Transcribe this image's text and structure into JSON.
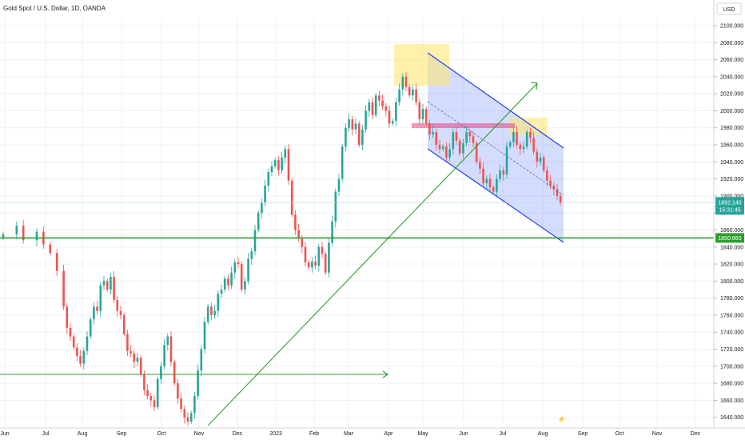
{
  "chart_data": {
    "type": "candlestick",
    "title": "Gold Spot / U.S. Dollar, 1D, OANDA",
    "currency": "USD",
    "x_ticks": [
      "Jun",
      "Jul",
      "Aug",
      "Sep",
      "Oct",
      "Nov",
      "Dec",
      "2023",
      "Feb",
      "Mar",
      "Apr",
      "May",
      "Jun",
      "Jul",
      "Aug",
      "Sep",
      "Oct",
      "Nov",
      "Dec"
    ],
    "y_ticks": [
      2100,
      2080,
      2060,
      2040,
      2020,
      2000,
      1980,
      1960,
      1940,
      1920,
      1900,
      1880,
      1860,
      1840,
      1820,
      1800,
      1780,
      1760,
      1740,
      1720,
      1700,
      1680,
      1660,
      1640
    ],
    "ylim": [
      1635,
      2112
    ],
    "grid": true,
    "last_price": "1892.140",
    "countdown": "15:31:45",
    "level_price": "1850.660",
    "colors": {
      "up": "#26a69a",
      "down": "#ef5350",
      "line": "#2e9e2e",
      "channel": "#1e40ff",
      "box": "#ffe566",
      "pink": "#e91e63"
    },
    "price_path": [
      [
        0,
        1855
      ],
      [
        4,
        1865
      ],
      [
        6,
        1848
      ],
      [
        10,
        1858
      ],
      [
        12,
        1843
      ],
      [
        14,
        1833
      ],
      [
        16,
        1812
      ],
      [
        18,
        1770
      ],
      [
        19,
        1745
      ],
      [
        20,
        1735
      ],
      [
        21,
        1722
      ],
      [
        22,
        1712
      ],
      [
        23,
        1703
      ],
      [
        24,
        1718
      ],
      [
        25,
        1735
      ],
      [
        26,
        1755
      ],
      [
        27,
        1770
      ],
      [
        28,
        1765
      ],
      [
        29,
        1795
      ],
      [
        30,
        1800
      ],
      [
        31,
        1790
      ],
      [
        32,
        1805
      ],
      [
        33,
        1778
      ],
      [
        34,
        1765
      ],
      [
        35,
        1760
      ],
      [
        36,
        1738
      ],
      [
        37,
        1718
      ],
      [
        38,
        1715
      ],
      [
        39,
        1705
      ],
      [
        40,
        1710
      ],
      [
        41,
        1690
      ],
      [
        42,
        1672
      ],
      [
        43,
        1665
      ],
      [
        44,
        1660
      ],
      [
        45,
        1652
      ],
      [
        46,
        1685
      ],
      [
        47,
        1700
      ],
      [
        48,
        1725
      ],
      [
        49,
        1735
      ],
      [
        50,
        1705
      ],
      [
        51,
        1680
      ],
      [
        52,
        1662
      ],
      [
        53,
        1650
      ],
      [
        54,
        1640
      ],
      [
        55,
        1635
      ],
      [
        56,
        1645
      ],
      [
        57,
        1665
      ],
      [
        58,
        1695
      ],
      [
        59,
        1720
      ],
      [
        60,
        1752
      ],
      [
        61,
        1770
      ],
      [
        62,
        1760
      ],
      [
        63,
        1765
      ],
      [
        64,
        1785
      ],
      [
        65,
        1790
      ],
      [
        66,
        1803
      ],
      [
        67,
        1795
      ],
      [
        68,
        1810
      ],
      [
        69,
        1822
      ],
      [
        70,
        1820
      ],
      [
        71,
        1790
      ],
      [
        72,
        1800
      ],
      [
        73,
        1826
      ],
      [
        74,
        1835
      ],
      [
        75,
        1860
      ],
      [
        76,
        1880
      ],
      [
        77,
        1892
      ],
      [
        78,
        1912
      ],
      [
        79,
        1928
      ],
      [
        80,
        1935
      ],
      [
        81,
        1942
      ],
      [
        82,
        1930
      ],
      [
        83,
        1945
      ],
      [
        84,
        1955
      ],
      [
        85,
        1918
      ],
      [
        86,
        1878
      ],
      [
        87,
        1860
      ],
      [
        88,
        1850
      ],
      [
        89,
        1840
      ],
      [
        90,
        1822
      ],
      [
        91,
        1816
      ],
      [
        92,
        1823
      ],
      [
        93,
        1818
      ],
      [
        94,
        1840
      ],
      [
        95,
        1832
      ],
      [
        96,
        1810
      ],
      [
        97,
        1845
      ],
      [
        98,
        1870
      ],
      [
        99,
        1905
      ],
      [
        100,
        1920
      ],
      [
        101,
        1958
      ],
      [
        102,
        1980
      ],
      [
        103,
        1990
      ],
      [
        104,
        1978
      ],
      [
        105,
        1985
      ],
      [
        106,
        1960
      ],
      [
        107,
        1978
      ],
      [
        108,
        2000
      ],
      [
        109,
        2010
      ],
      [
        110,
        1995
      ],
      [
        111,
        2018
      ],
      [
        112,
        2012
      ],
      [
        113,
        2005
      ],
      [
        114,
        2000
      ],
      [
        115,
        1985
      ],
      [
        116,
        1988
      ],
      [
        117,
        2010
      ],
      [
        118,
        2025
      ],
      [
        119,
        2040
      ],
      [
        120,
        2028
      ],
      [
        121,
        2018
      ],
      [
        122,
        2025
      ],
      [
        123,
        2010
      ],
      [
        124,
        1990
      ],
      [
        125,
        2002
      ],
      [
        126,
        1985
      ],
      [
        127,
        1972
      ],
      [
        128,
        1975
      ],
      [
        129,
        1960
      ],
      [
        130,
        1955
      ],
      [
        131,
        1958
      ],
      [
        132,
        1945
      ],
      [
        133,
        1955
      ],
      [
        134,
        1975
      ],
      [
        135,
        1965
      ],
      [
        136,
        1950
      ],
      [
        137,
        1962
      ],
      [
        138,
        1975
      ],
      [
        139,
        1970
      ],
      [
        140,
        1962
      ],
      [
        141,
        1940
      ],
      [
        142,
        1932
      ],
      [
        143,
        1915
      ],
      [
        144,
        1920
      ],
      [
        145,
        1910
      ],
      [
        146,
        1905
      ],
      [
        147,
        1920
      ],
      [
        148,
        1930
      ],
      [
        149,
        1925
      ],
      [
        150,
        1958
      ],
      [
        151,
        1963
      ],
      [
        152,
        1975
      ],
      [
        153,
        1960
      ],
      [
        154,
        1955
      ],
      [
        155,
        1958
      ],
      [
        156,
        1975
      ],
      [
        157,
        1968
      ],
      [
        158,
        1952
      ],
      [
        159,
        1940
      ],
      [
        160,
        1945
      ],
      [
        161,
        1930
      ],
      [
        162,
        1918
      ],
      [
        163,
        1912
      ],
      [
        164,
        1908
      ],
      [
        165,
        1900
      ],
      [
        166,
        1892
      ]
    ]
  },
  "annotations": {
    "lightning_glyph": "⚡"
  }
}
